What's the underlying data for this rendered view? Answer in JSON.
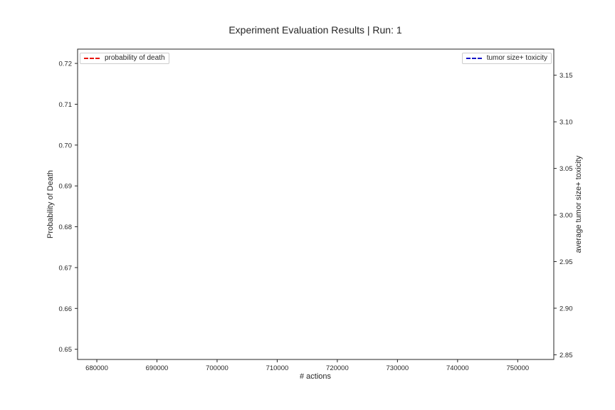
{
  "chart_data": {
    "type": "line",
    "title": "Experiment Evaluation Results | Run: 1",
    "xlabel": "# actions",
    "ylabel_left": "Probability of Death",
    "ylabel_right": "average tumor size+ toxicity",
    "xlim": [
      676800,
      756000
    ],
    "ylim_left": [
      0.6475,
      0.7235
    ],
    "ylim_right": [
      2.845,
      3.178
    ],
    "x_ticks": [
      680000,
      690000,
      700000,
      710000,
      720000,
      730000,
      740000,
      750000
    ],
    "y_ticks_left": [
      0.65,
      0.66,
      0.67,
      0.68,
      0.69,
      0.7,
      0.71,
      0.72
    ],
    "y_ticks_right": [
      2.85,
      2.9,
      2.95,
      3.0,
      3.05,
      3.1,
      3.15
    ],
    "x_tick_labels": [
      "680000",
      "690000",
      "700000",
      "710000",
      "720000",
      "730000",
      "740000",
      "750000"
    ],
    "y_tick_labels_left": [
      "0.65",
      "0.66",
      "0.67",
      "0.68",
      "0.69",
      "0.70",
      "0.71",
      "0.72"
    ],
    "y_tick_labels_right": [
      "2.85",
      "2.90",
      "2.95",
      "3.00",
      "3.05",
      "3.10",
      "3.15"
    ],
    "grid": false,
    "series": [
      {
        "name": "probability of death",
        "axis": "left",
        "color": "#e8140c",
        "style": "dashed",
        "x": [],
        "y": []
      },
      {
        "name": "tumor size+ toxicity",
        "axis": "right",
        "color": "#1515c8",
        "style": "dashed",
        "x": [],
        "y": []
      }
    ],
    "legend_left_placement": "upper-left",
    "legend_right_placement": "upper-right"
  }
}
